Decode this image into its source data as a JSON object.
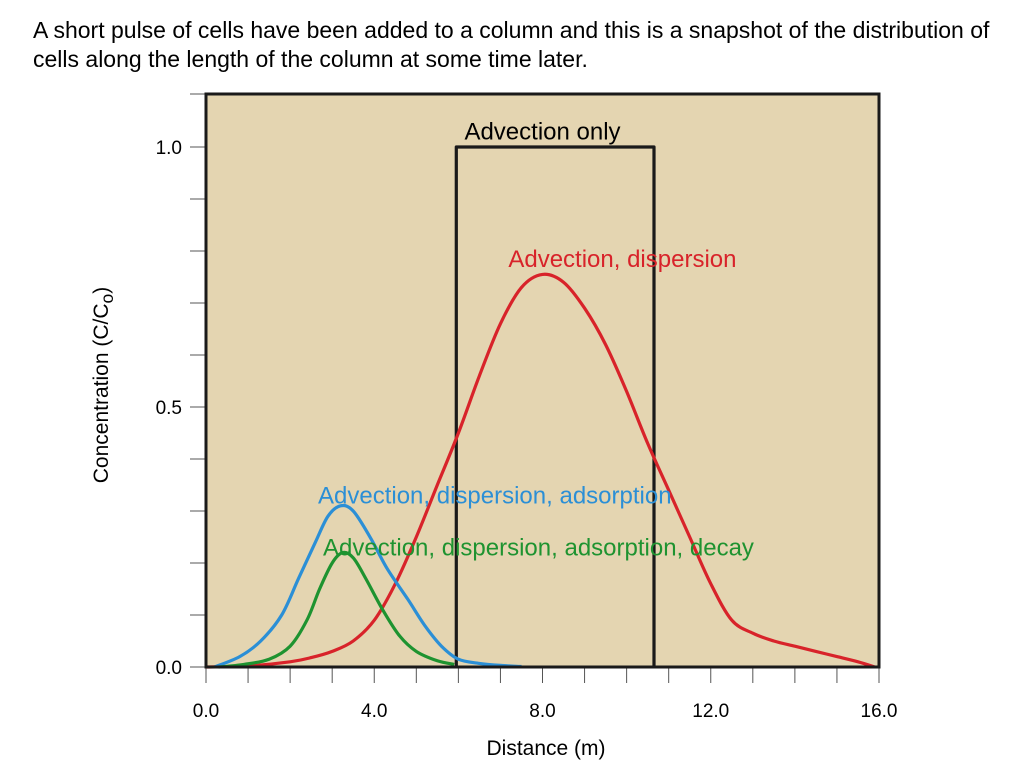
{
  "caption": "A short pulse of cells have been added to a column and this is a snapshot of the distribution of cells along the length of the column at some time later.",
  "chart_data": {
    "type": "line",
    "xlabel": "Distance (m)",
    "ylabel": "Concentration (C/C",
    "ylabel_subscript": "o",
    "ylabel_close": ")",
    "xlim": [
      0,
      16
    ],
    "ylim": [
      0,
      1.1
    ],
    "x_ticks": [
      {
        "value": 0,
        "label": "0.0"
      },
      {
        "value": 4,
        "label": "4.0"
      },
      {
        "value": 8,
        "label": "8.0"
      },
      {
        "value": 12,
        "label": "12.0"
      },
      {
        "value": 16,
        "label": "16.0"
      }
    ],
    "y_ticks": [
      {
        "value": 0,
        "label": "0.0"
      },
      {
        "value": 0.5,
        "label": "0.5"
      },
      {
        "value": 1.0,
        "label": "1.0"
      }
    ],
    "background": "#e4d5b1",
    "series": [
      {
        "name": "Advection only",
        "color": "#1a1a1a",
        "label_at": [
          8.0,
          1.03
        ],
        "points": [
          [
            5.95,
            0
          ],
          [
            5.95,
            1.0
          ],
          [
            10.65,
            1.0
          ],
          [
            10.65,
            0
          ]
        ]
      },
      {
        "name": "Advection, dispersion",
        "color": "#d8232a",
        "label_at": [
          9.9,
          0.785
        ],
        "points": [
          [
            0,
            0
          ],
          [
            1.0,
            0.002
          ],
          [
            2.0,
            0.01
          ],
          [
            2.5,
            0.018
          ],
          [
            3.0,
            0.03
          ],
          [
            3.5,
            0.05
          ],
          [
            4.0,
            0.09
          ],
          [
            4.5,
            0.16
          ],
          [
            5.0,
            0.25
          ],
          [
            5.5,
            0.35
          ],
          [
            6.0,
            0.45
          ],
          [
            6.5,
            0.56
          ],
          [
            7.0,
            0.66
          ],
          [
            7.5,
            0.73
          ],
          [
            8.0,
            0.755
          ],
          [
            8.5,
            0.74
          ],
          [
            9.0,
            0.69
          ],
          [
            9.5,
            0.62
          ],
          [
            10.0,
            0.53
          ],
          [
            10.5,
            0.43
          ],
          [
            11.0,
            0.34
          ],
          [
            11.5,
            0.25
          ],
          [
            12.0,
            0.16
          ],
          [
            12.5,
            0.09
          ],
          [
            13.0,
            0.065
          ],
          [
            13.5,
            0.05
          ],
          [
            14.0,
            0.04
          ],
          [
            14.5,
            0.03
          ],
          [
            15.0,
            0.02
          ],
          [
            15.5,
            0.01
          ],
          [
            15.9,
            0
          ]
        ]
      },
      {
        "name": "Advection, dispersion, adsorption",
        "color": "#2b8fd6",
        "label_at": [
          3.0,
          0.33
        ],
        "points": [
          [
            0.2,
            0
          ],
          [
            0.8,
            0.02
          ],
          [
            1.3,
            0.05
          ],
          [
            1.8,
            0.1
          ],
          [
            2.2,
            0.17
          ],
          [
            2.6,
            0.24
          ],
          [
            2.9,
            0.29
          ],
          [
            3.2,
            0.31
          ],
          [
            3.5,
            0.3
          ],
          [
            3.9,
            0.25
          ],
          [
            4.3,
            0.19
          ],
          [
            4.8,
            0.13
          ],
          [
            5.2,
            0.08
          ],
          [
            5.6,
            0.04
          ],
          [
            6.0,
            0.015
          ],
          [
            6.5,
            0.007
          ],
          [
            7.0,
            0.003
          ],
          [
            7.5,
            0.001
          ]
        ]
      },
      {
        "name": "Advection, dispersion, adsorption, decay",
        "color": "#1e9330",
        "label_at": [
          3.0,
          0.23
        ],
        "points": [
          [
            0.3,
            0
          ],
          [
            0.9,
            0.005
          ],
          [
            1.5,
            0.015
          ],
          [
            2.0,
            0.04
          ],
          [
            2.4,
            0.09
          ],
          [
            2.7,
            0.15
          ],
          [
            3.0,
            0.2
          ],
          [
            3.25,
            0.22
          ],
          [
            3.5,
            0.21
          ],
          [
            3.8,
            0.17
          ],
          [
            4.2,
            0.11
          ],
          [
            4.6,
            0.06
          ],
          [
            5.0,
            0.03
          ],
          [
            5.5,
            0.012
          ],
          [
            5.9,
            0.005
          ]
        ]
      }
    ]
  }
}
